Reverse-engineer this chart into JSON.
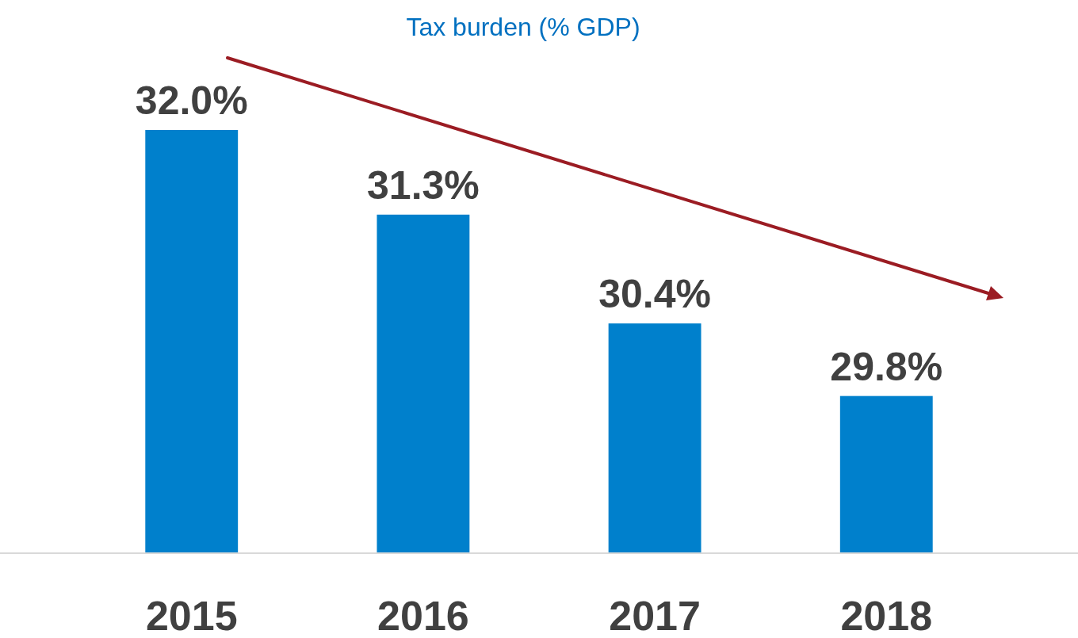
{
  "chart_data": {
    "type": "bar",
    "title": "Tax burden (% GDP)",
    "categories": [
      "2015",
      "2016",
      "2017",
      "2018"
    ],
    "values": [
      32.0,
      31.3,
      30.4,
      29.8
    ],
    "value_labels": [
      "32.0%",
      "31.3%",
      "30.4%",
      "29.8%"
    ],
    "color": "#0080cc",
    "ylim": [
      28.5,
      32.0
    ]
  }
}
